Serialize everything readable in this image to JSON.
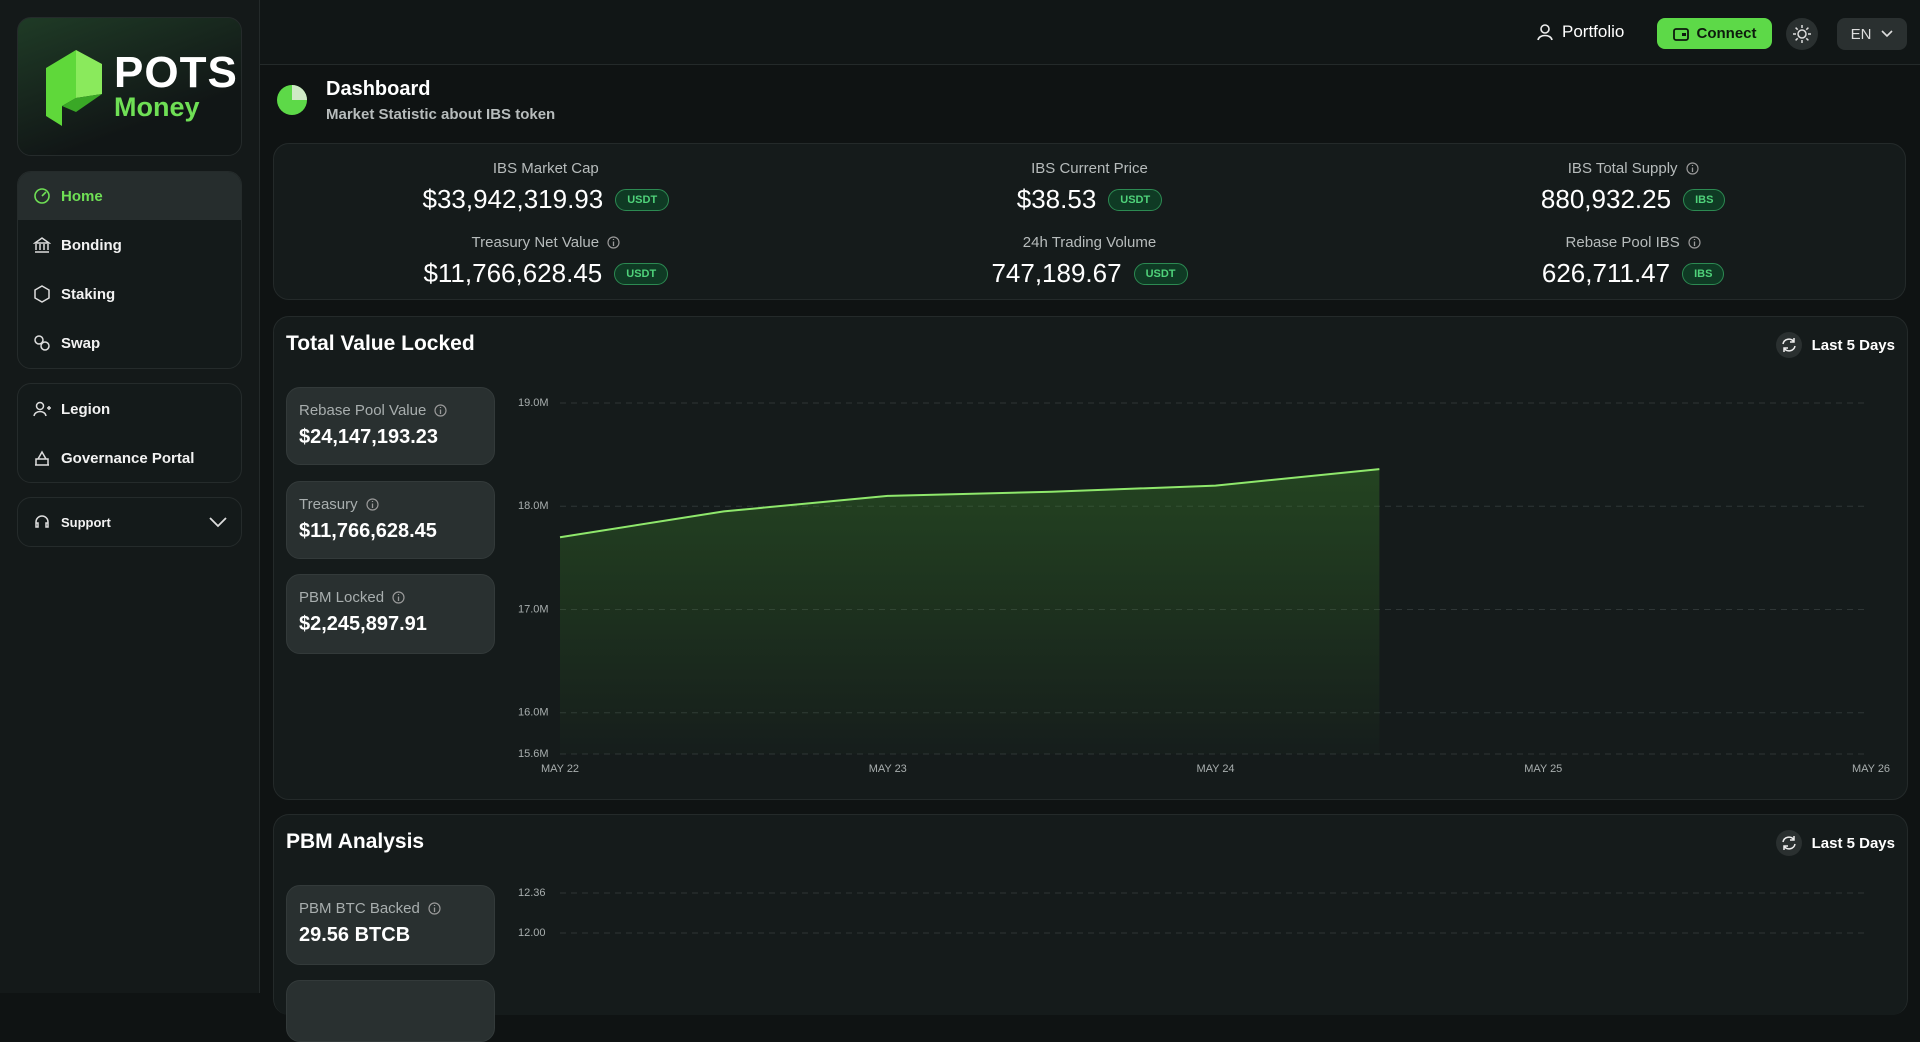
{
  "logo": {
    "word": "POTS",
    "sub": "Money"
  },
  "nav": {
    "main": [
      "Home",
      "Bonding",
      "Staking",
      "Swap"
    ],
    "extra": [
      "Legion",
      "Governance Portal"
    ],
    "support": "Support"
  },
  "header": {
    "portfolio": "Portfolio",
    "connect": "Connect",
    "language": "EN"
  },
  "page": {
    "title": "Dashboard",
    "subtitle": "Market Statistic about IBS token"
  },
  "stats": [
    {
      "label": "IBS Market Cap",
      "value": "$33,942,319.93",
      "unit": "USDT"
    },
    {
      "label": "IBS Current Price",
      "value": "$38.53",
      "unit": "USDT"
    },
    {
      "label": "IBS Total Supply",
      "value": "880,932.25",
      "unit": "IBS"
    },
    {
      "label": "Treasury Net Value",
      "value": "$11,766,628.45",
      "unit": "USDT"
    },
    {
      "label": "24h Trading Volume",
      "value": "747,189.67",
      "unit": "USDT"
    },
    {
      "label": "Rebase Pool IBS",
      "value": "626,711.47",
      "unit": "IBS"
    }
  ],
  "panels": [
    {
      "range": "Last 5 Days",
      "cards": [
        {
          "label": "Rebase Pool Value",
          "value": "$24,147,193.23"
        },
        {
          "label": "Treasury",
          "value": "$11,766,628.45"
        },
        {
          "label": "PBM Locked",
          "value": "$2,245,897.91"
        }
      ]
    },
    {
      "range": "Last 5 Days",
      "cards": [
        {
          "label": "PBM BTC Backed",
          "value": "29.56 BTCB"
        }
      ]
    }
  ],
  "chart_data": [
    {
      "type": "line",
      "title": "Total Value Locked",
      "categories": [
        "MAY 22",
        null,
        "MAY 23",
        null,
        "MAY 24",
        null,
        "MAY 25",
        null,
        "MAY 26"
      ],
      "series": [
        {
          "color": "#8fe86c",
          "values": [
            17700000,
            17950000,
            18100000,
            18140000,
            18200000,
            18360000,
            null,
            null,
            null
          ]
        }
      ],
      "ylim": [
        15600000,
        19000000
      ],
      "yticks": [
        {
          "value": 15600000,
          "label": "15.6M"
        },
        {
          "value": 16000000,
          "label": "16.0M"
        },
        {
          "value": 17000000,
          "label": "17.0M"
        },
        {
          "value": 18000000,
          "label": "18.0M"
        },
        {
          "value": 19000000,
          "label": "19.0M"
        }
      ],
      "grid": true
    },
    {
      "type": "line",
      "title": "PBM Analysis",
      "yticks": [
        {
          "value": 12,
          "label": "12.00"
        },
        12.36
      ],
      "grid": true
    }
  ]
}
